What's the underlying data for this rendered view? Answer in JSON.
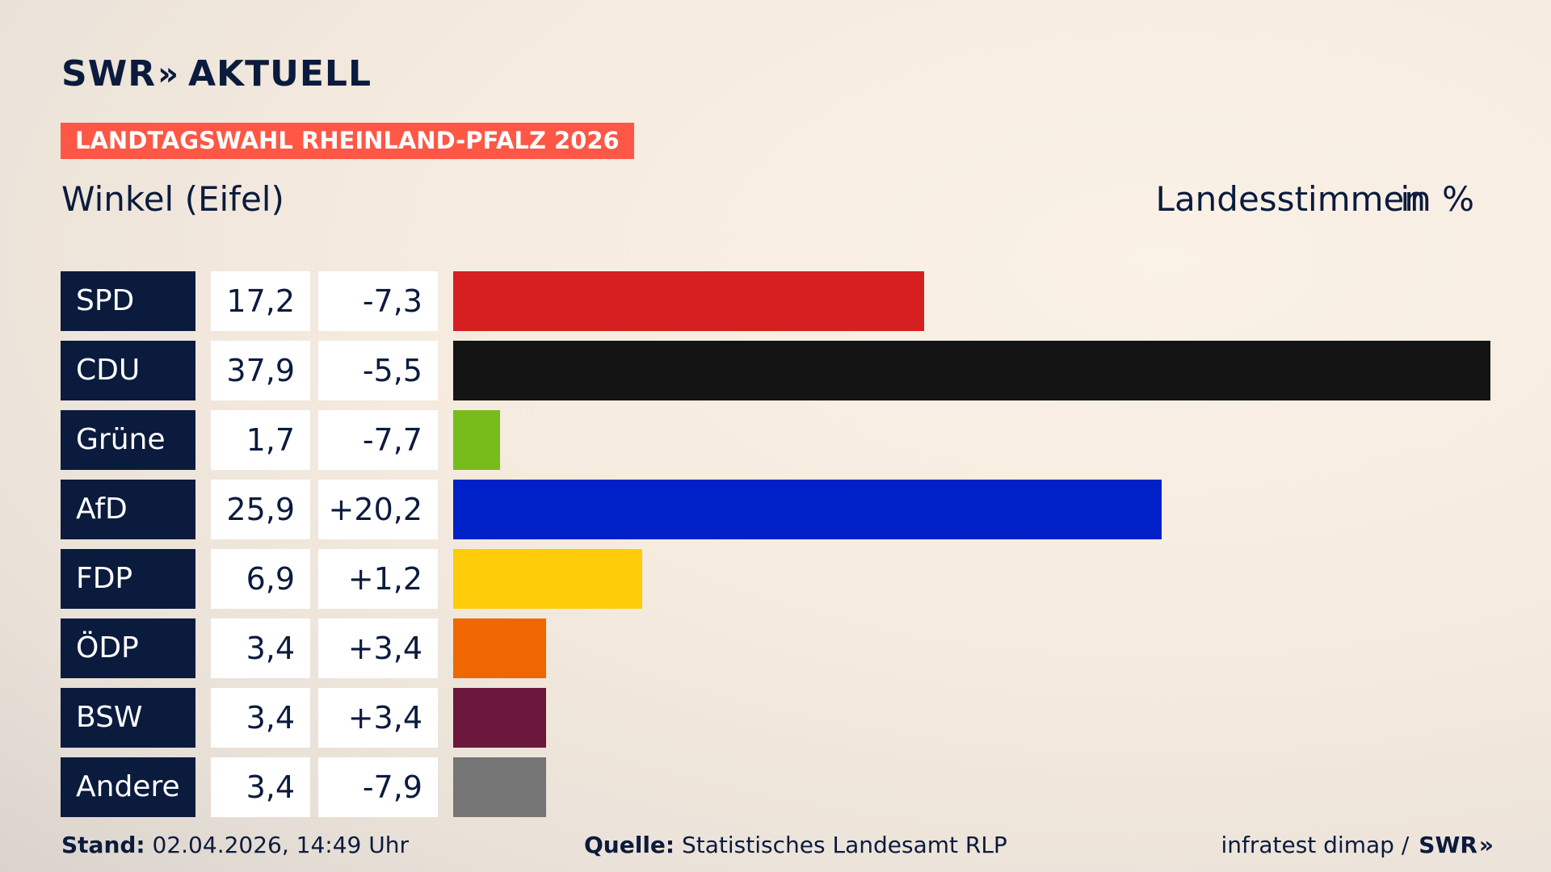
{
  "brand": {
    "logo_text": "SWR",
    "logo_chevrons": "»",
    "logo_sub": "AKTUELL"
  },
  "badge": "LANDTAGSWAHL RHEINLAND-PFALZ 2026",
  "location": "Winkel (Eifel)",
  "metric": "Landesstimmen",
  "unit": "in %",
  "footer": {
    "stand_label": "Stand:",
    "stand_value": "02.04.2026, 14:49 Uhr",
    "source_label": "Quelle:",
    "source_value": "Statistisches Landesamt RLP",
    "credit": "infratest dimap /",
    "credit_logo": "SWR",
    "credit_chevrons": "»"
  },
  "chart_data": {
    "type": "bar",
    "orientation": "horizontal",
    "categories": [
      "SPD",
      "CDU",
      "Grüne",
      "AfD",
      "FDP",
      "ÖDP",
      "BSW",
      "Andere"
    ],
    "values": [
      17.2,
      37.9,
      1.7,
      25.9,
      6.9,
      3.4,
      3.4,
      3.4
    ],
    "value_labels": [
      "17,2",
      "37,9",
      "1,7",
      "25,9",
      "6,9",
      "3,4",
      "3,4",
      "3,4"
    ],
    "diff_labels": [
      "-7,3",
      "-5,5",
      "-7,7",
      "+20,2",
      "+1,2",
      "+3,4",
      "+3,4",
      "-7,9"
    ],
    "diffs": [
      -7.3,
      -5.5,
      -7.7,
      20.2,
      1.2,
      3.4,
      3.4,
      -7.9
    ],
    "colors": [
      "#d51f20",
      "#141414",
      "#78bc1b",
      "#0021c8",
      "#ffcc0a",
      "#ee6700",
      "#6b183c",
      "#757575"
    ],
    "xlim": [
      0,
      37.9
    ]
  }
}
